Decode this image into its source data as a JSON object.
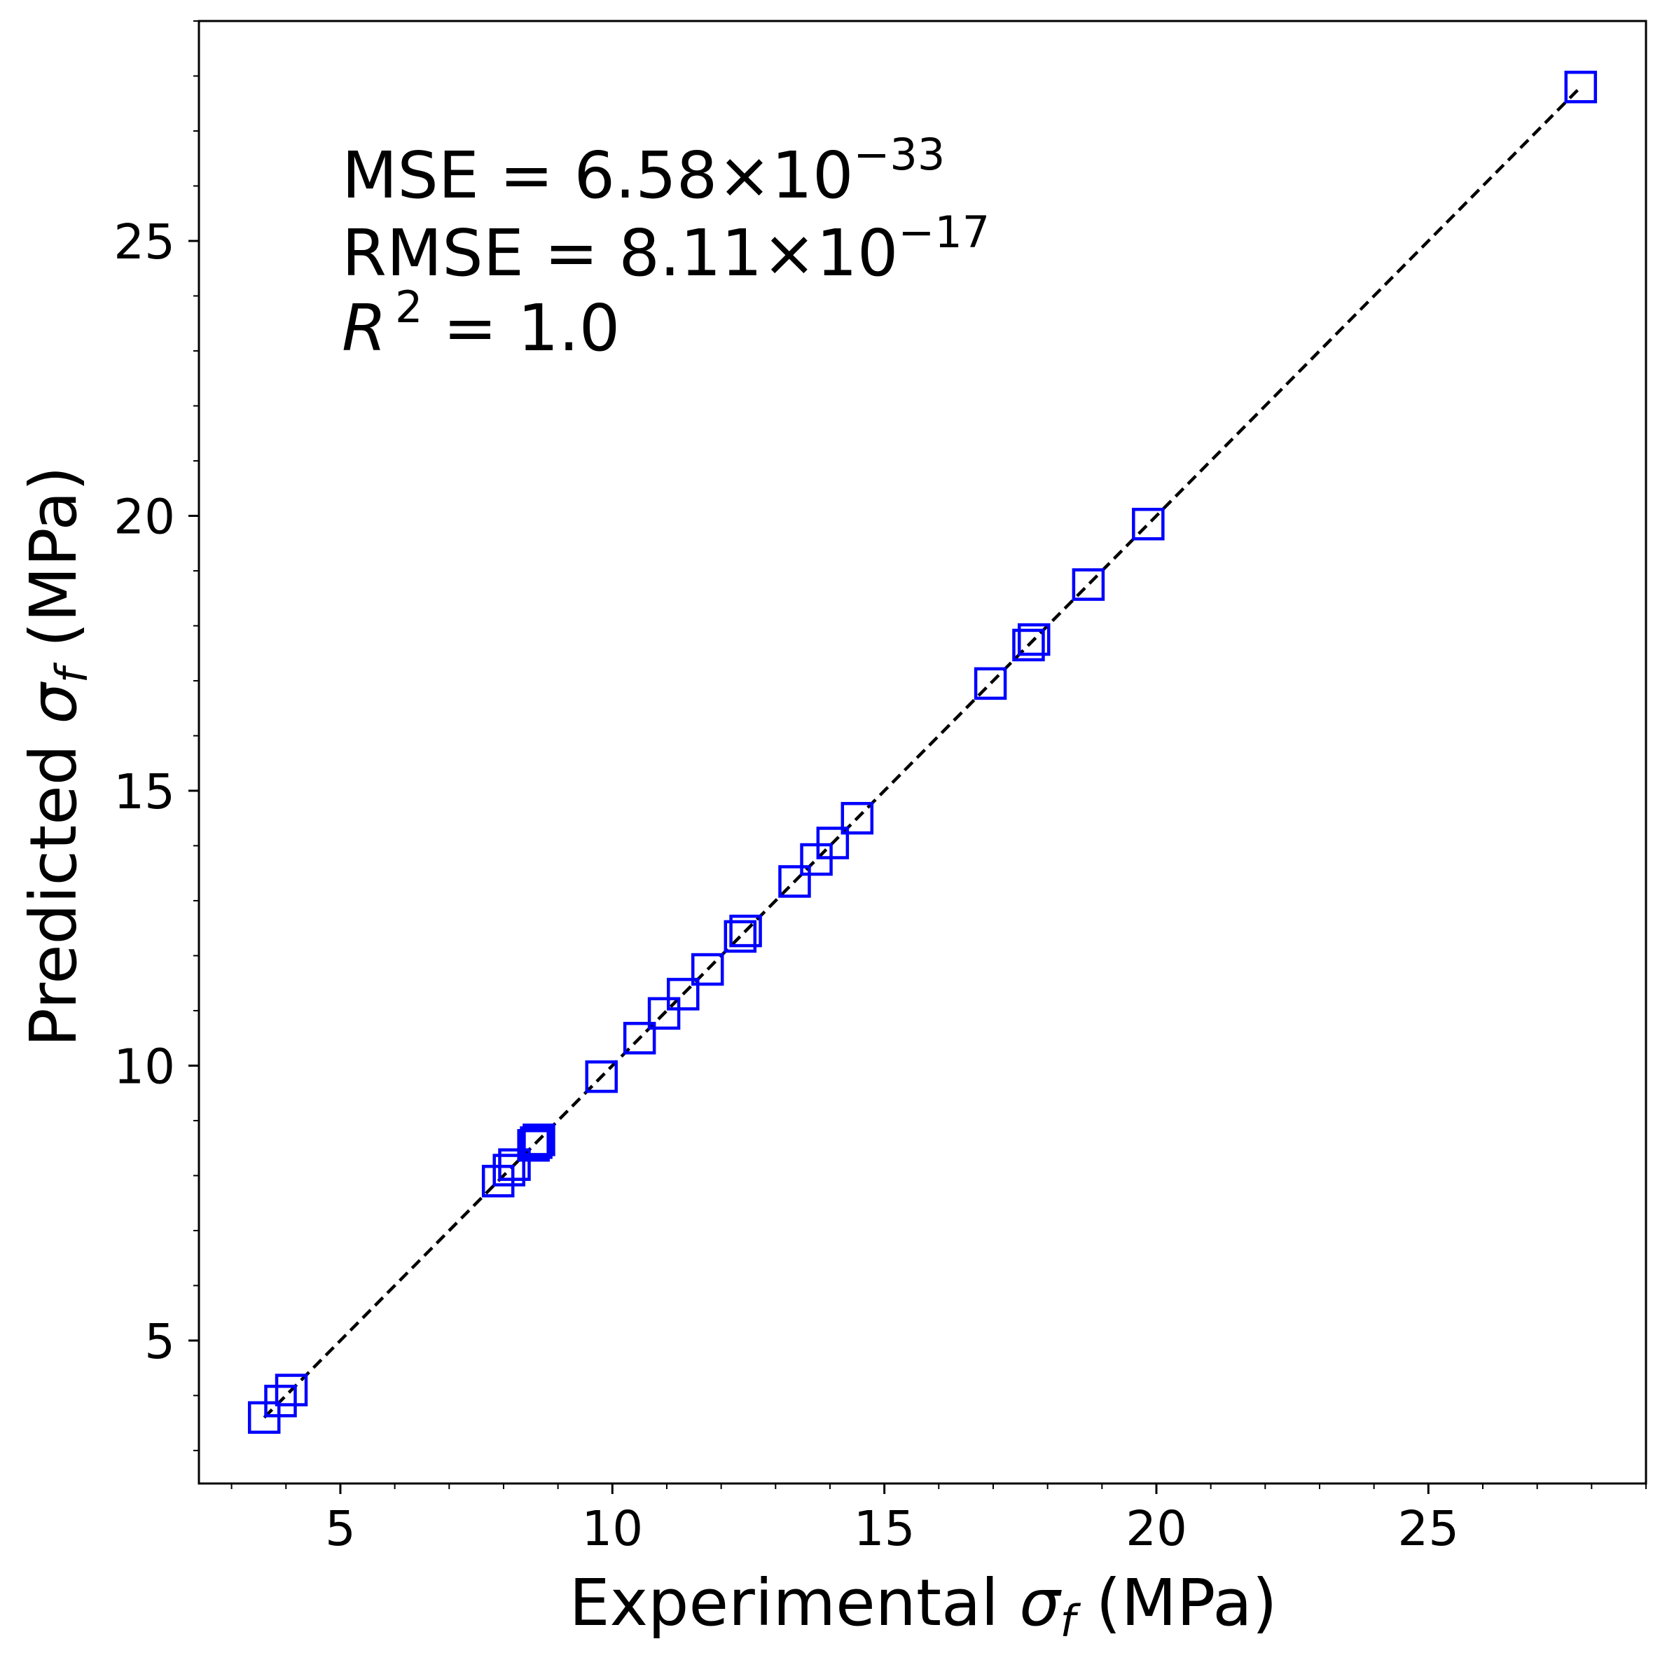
{
  "chart_data": {
    "type": "scatter",
    "xlabel": {
      "prefix": "Experimental ",
      "symbol": "σ",
      "subscript": "f",
      "suffix": " (MPa)"
    },
    "ylabel": {
      "prefix": "Predicted ",
      "symbol": "σ",
      "subscript": "f",
      "suffix": " (MPa)"
    },
    "xlim": [
      2.4,
      29.0
    ],
    "ylim": [
      2.4,
      29.0
    ],
    "xticks": [
      5,
      10,
      15,
      20,
      25
    ],
    "yticks": [
      5,
      10,
      15,
      20,
      25
    ],
    "xtick_labels": [
      "5",
      "10",
      "15",
      "20",
      "25"
    ],
    "ytick_labels": [
      "5",
      "10",
      "15",
      "20",
      "25"
    ],
    "grid": false,
    "annotations": {
      "mse": {
        "base": "MSE = 6.58×10",
        "exp": "−33"
      },
      "rmse": {
        "base": "RMSE = 8.11×10",
        "exp": "−17"
      },
      "r2": {
        "sym": "R",
        "exp": "2",
        "value": " = 1.0"
      }
    },
    "series": [
      {
        "marker": "open-square",
        "color": "#0000ff",
        "x": [
          3.6,
          3.9,
          4.1,
          7.9,
          8.1,
          8.2,
          8.55,
          8.6,
          8.65,
          9.8,
          10.5,
          10.95,
          11.3,
          11.75,
          12.35,
          12.45,
          13.35,
          13.75,
          14.05,
          14.5,
          16.95,
          17.65,
          17.75,
          18.75,
          19.85,
          27.8
        ],
        "y": [
          3.6,
          3.9,
          4.1,
          7.9,
          8.1,
          8.2,
          8.55,
          8.6,
          8.65,
          9.8,
          10.5,
          10.95,
          11.3,
          11.75,
          12.35,
          12.45,
          13.35,
          13.75,
          14.05,
          14.5,
          16.95,
          17.65,
          17.75,
          18.75,
          19.85,
          27.8
        ]
      }
    ],
    "reference_line": {
      "style": "dashed",
      "color": "#000000",
      "from": [
        3.6,
        3.6
      ],
      "to": [
        27.8,
        27.8
      ]
    }
  }
}
